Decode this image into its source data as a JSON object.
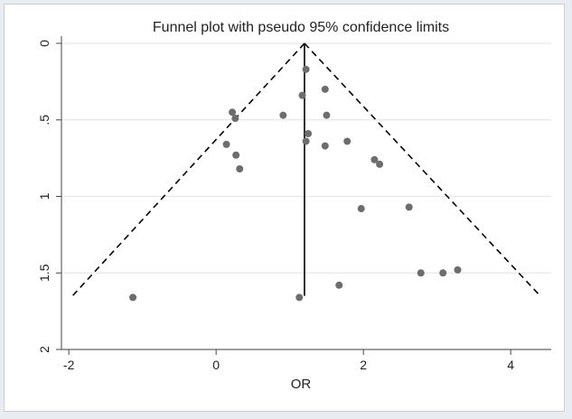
{
  "chart_data": {
    "type": "scatter",
    "title": "Funnel plot with pseudo 95% confidence limits",
    "xlabel": "OR",
    "ylabel": "",
    "xlim": [
      -2.1,
      4.55
    ],
    "ylim": [
      0,
      2
    ],
    "y_reversed": true,
    "grid": true,
    "grid_axis": "y",
    "legend": "none",
    "x_ticks": [
      -2,
      0,
      2,
      4
    ],
    "x_tick_labels": [
      "-2",
      "0",
      "2",
      "4"
    ],
    "y_ticks": [
      0,
      0.5,
      1,
      1.5,
      2
    ],
    "y_tick_labels": [
      "0",
      ".5",
      "1",
      "1.5",
      "2"
    ],
    "pooled_estimate": 1.2,
    "funnel_bottom_se": 1.65,
    "funnel_edges_x_at_bottom": [
      -1.95,
      4.4
    ],
    "series": [
      {
        "points": [
          {
            "x": 1.22,
            "y": 0.17
          },
          {
            "x": 1.48,
            "y": 0.3
          },
          {
            "x": 1.17,
            "y": 0.34
          },
          {
            "x": 0.22,
            "y": 0.45
          },
          {
            "x": 0.26,
            "y": 0.49
          },
          {
            "x": 0.91,
            "y": 0.47
          },
          {
            "x": 1.5,
            "y": 0.47
          },
          {
            "x": 1.25,
            "y": 0.59
          },
          {
            "x": 1.22,
            "y": 0.64
          },
          {
            "x": 1.78,
            "y": 0.64
          },
          {
            "x": 0.14,
            "y": 0.66
          },
          {
            "x": 1.48,
            "y": 0.67
          },
          {
            "x": 0.27,
            "y": 0.73
          },
          {
            "x": 0.32,
            "y": 0.82
          },
          {
            "x": 2.15,
            "y": 0.76
          },
          {
            "x": 2.22,
            "y": 0.79
          },
          {
            "x": 1.97,
            "y": 1.08
          },
          {
            "x": 2.62,
            "y": 1.07
          },
          {
            "x": 2.78,
            "y": 1.5
          },
          {
            "x": 3.08,
            "y": 1.5
          },
          {
            "x": 3.28,
            "y": 1.48
          },
          {
            "x": 1.67,
            "y": 1.58
          },
          {
            "x": -1.13,
            "y": 1.66
          },
          {
            "x": 1.13,
            "y": 1.66
          }
        ]
      }
    ]
  },
  "colors": {
    "background": "#e9edf1",
    "plot": "#ffffff",
    "points": "#6d6d6d",
    "lines": "#000000",
    "grid": "#e4e8ec",
    "axis": "#444444"
  }
}
